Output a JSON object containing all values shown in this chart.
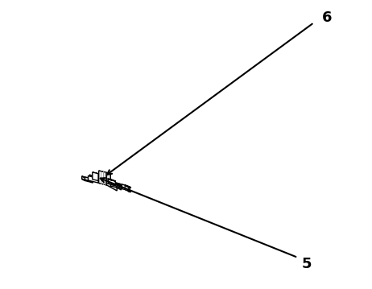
{
  "background_color": "#ffffff",
  "line_color": "#000000",
  "label_6_text": "6",
  "label_5_text": "5",
  "figsize": [
    4.62,
    3.59
  ],
  "dpi": 100,
  "colors": {
    "top": "#f0f0f0",
    "front": "#ffffff",
    "side": "#e0e0e0",
    "dark": "#cccccc",
    "white": "#ffffff"
  }
}
